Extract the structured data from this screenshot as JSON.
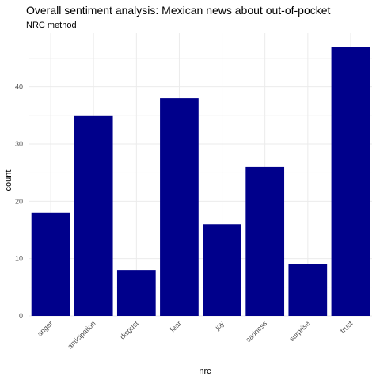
{
  "chart_data": {
    "type": "bar",
    "title": "Overall sentiment analysis: Mexican news about out-of-pocket",
    "subtitle": "NRC method",
    "xlabel": "nrc",
    "ylabel": "count",
    "categories": [
      "anger",
      "anticipation",
      "disgust",
      "fear",
      "joy",
      "sadness",
      "surprise",
      "trust"
    ],
    "values": [
      18,
      35,
      8,
      38,
      16,
      26,
      9,
      47
    ],
    "ylim": [
      0,
      49.35
    ],
    "yticks": [
      "0",
      "10",
      "20",
      "30",
      "40"
    ],
    "bar_color": "#00008b",
    "grid": true,
    "theme": "minimal"
  }
}
